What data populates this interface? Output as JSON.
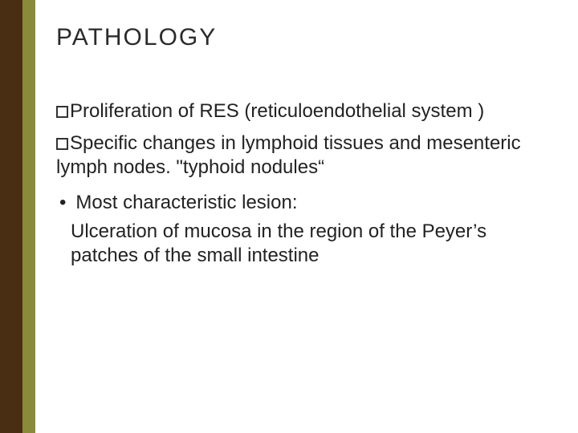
{
  "colors": {
    "brown": "#4a2e13",
    "olive": "#8a8a3b",
    "title_text": "#2b2b2b",
    "body_text": "#222222",
    "bullet_border": "#333333"
  },
  "title": "PATHOLOGY",
  "bullets": {
    "b1": "Proliferation of RES (reticuloendothelial system )",
    "b2": "Specific changes in lymphoid tissues and mesenteric lymph nodes. \"typhoid nodules“",
    "b3": "Most characteristic lesion:",
    "b4": "Ulceration of mucosa in the region of the Peyer’s patches of the small intestine"
  }
}
